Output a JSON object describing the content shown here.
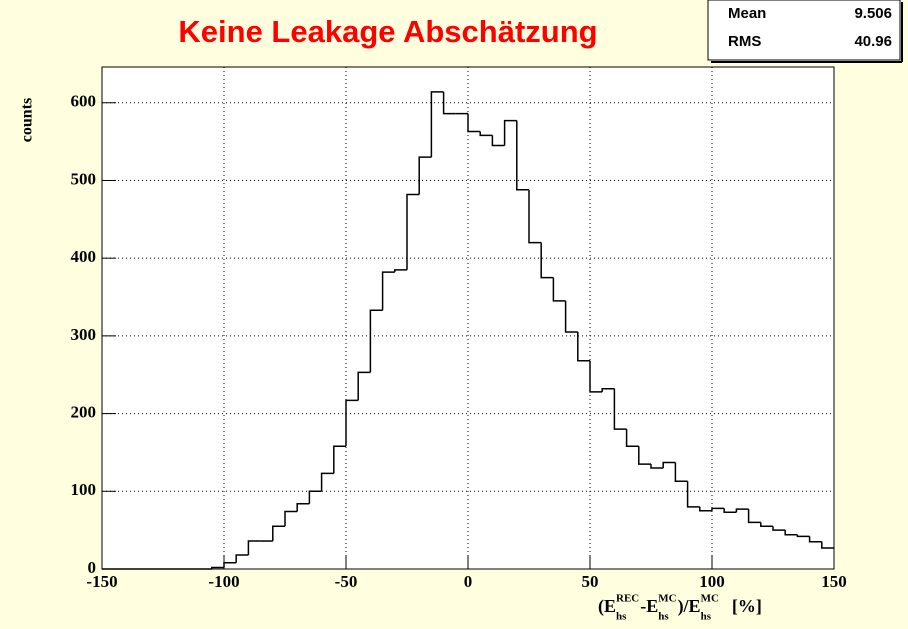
{
  "chart_data": {
    "type": "histogram",
    "title": "Keine Leakage Abschätzung",
    "y_label": "counts",
    "x_label": [
      "(E",
      "REC",
      "hs",
      "-E",
      "MC",
      "hs",
      ")/E",
      "MC",
      "hs",
      "[%]"
    ],
    "stats": [
      {
        "name": "Mean",
        "value": 9.506
      },
      {
        "name": "RMS",
        "value": 40.96
      }
    ],
    "bins": [
      -150,
      -145,
      -140,
      -135,
      -130,
      -125,
      -120,
      -115,
      -110,
      -105,
      -100,
      -95,
      -90,
      -85,
      -80,
      -75,
      -70,
      -65,
      -60,
      -55,
      -50,
      -45,
      -40,
      -35,
      -30,
      -25,
      -20,
      -15,
      -10,
      -5,
      0,
      5,
      10,
      15,
      20,
      25,
      30,
      35,
      40,
      45,
      50,
      55,
      60,
      65,
      70,
      75,
      80,
      85,
      90,
      95,
      100,
      105,
      110,
      115,
      120,
      125,
      130,
      135,
      140,
      145,
      150
    ],
    "counts": [
      0,
      0,
      0,
      0,
      0,
      0,
      0,
      0,
      0,
      2,
      8,
      18,
      36,
      36,
      55,
      74,
      84,
      100,
      123,
      158,
      217,
      253,
      333,
      382,
      385,
      482,
      530,
      614,
      586,
      586,
      563,
      558,
      545,
      577,
      488,
      420,
      375,
      345,
      305,
      268,
      228,
      232,
      180,
      158,
      135,
      130,
      137,
      113,
      80,
      75,
      78,
      73,
      77,
      60,
      55,
      50,
      44,
      42,
      35,
      27
    ],
    "color": "#000000",
    "xlim": [
      -150,
      150
    ],
    "xticks": [
      -150,
      -100,
      -50,
      0,
      50,
      100,
      150
    ],
    "ylim": [
      0,
      646
    ],
    "yticks": [
      0,
      100,
      200,
      300,
      400,
      500,
      600
    ],
    "grid": true
  }
}
